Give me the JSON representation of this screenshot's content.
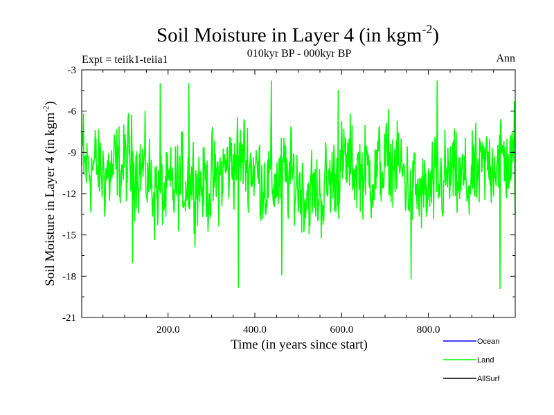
{
  "chart_data": {
    "type": "line",
    "title": "Soil Moisture in Layer 4 (in kgm",
    "title_sup": "-2",
    "title_close": ")",
    "subtitle": "010kyr BP - 000kyr BP",
    "left_label": "Expt = teiik1-teiia1",
    "right_label": "Ann",
    "xlabel": "Time (in years since start)",
    "ylabel": "Soil Moisture in Layer 4 (in kgm",
    "ylabel_sup": "-2",
    "ylabel_close": ")",
    "xlim": [
      1,
      1000
    ],
    "ylim": [
      -21,
      -3
    ],
    "x_ticks": [
      {
        "value": 200,
        "label": "200.0"
      },
      {
        "value": 400,
        "label": "400.0"
      },
      {
        "value": 600,
        "label": "600.0"
      },
      {
        "value": 800,
        "label": "800.0"
      }
    ],
    "y_ticks": [
      {
        "value": -3,
        "label": "-3"
      },
      {
        "value": -6,
        "label": "-6"
      },
      {
        "value": -9,
        "label": "-9"
      },
      {
        "value": -12,
        "label": "-12"
      },
      {
        "value": -15,
        "label": "-15"
      },
      {
        "value": -18,
        "label": "-18"
      },
      {
        "value": -21,
        "label": "-21"
      }
    ],
    "legend": [
      {
        "name": "Ocean",
        "color": "#0000ff"
      },
      {
        "name": "Land",
        "color": "#00ff00"
      },
      {
        "name": "AllSurf",
        "color": "#000000"
      }
    ],
    "legend_position": "bottom-right",
    "series": [
      {
        "name": "Land",
        "color": "#00ff00",
        "generated": true,
        "n": 1000,
        "mean": -10.8,
        "spread": 2.4,
        "min": -18.9,
        "max": -3.7,
        "extremes": [
          {
            "x": 5,
            "y": -6.2
          },
          {
            "x": 118,
            "y": -17.0
          },
          {
            "x": 182,
            "y": -4.0
          },
          {
            "x": 248,
            "y": -4.0
          },
          {
            "x": 362,
            "y": -18.8
          },
          {
            "x": 438,
            "y": -3.8
          },
          {
            "x": 462,
            "y": -17.9
          },
          {
            "x": 592,
            "y": -4.5
          },
          {
            "x": 760,
            "y": -18.2
          },
          {
            "x": 820,
            "y": -3.8
          },
          {
            "x": 965,
            "y": -18.9
          },
          {
            "x": 998,
            "y": -5.3
          }
        ]
      }
    ]
  }
}
